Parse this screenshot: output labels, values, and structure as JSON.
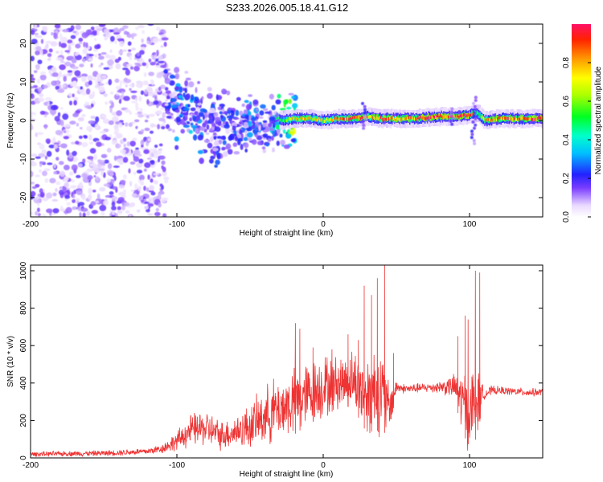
{
  "title": "S233.2026.005.18.41.G12",
  "chart_data": [
    {
      "type": "heatmap",
      "xlabel": "Height of straight line (km)",
      "ylabel": "Frequency (Hz)",
      "xlim": [
        -200,
        150
      ],
      "ylim": [
        -25,
        25
      ],
      "x_ticks": [
        -200,
        -100,
        0,
        100
      ],
      "y_ticks": [
        -20,
        -10,
        0,
        10,
        20
      ],
      "colorbar": {
        "label": "Normalized spectral amplitude",
        "range": [
          0.0,
          1.0
        ],
        "ticks": [
          "0.0",
          "0.2",
          "0.4",
          "0.6",
          "0.8"
        ]
      },
      "ridge_profile": {
        "x": [
          -110,
          -100,
          -90,
          -80,
          -70,
          -60,
          -50,
          -40,
          -35,
          -30,
          -20,
          -10,
          0,
          10,
          20,
          30,
          40,
          50,
          60,
          70,
          80,
          90,
          100,
          105,
          110,
          120,
          130,
          140,
          150
        ],
        "center_hz": [
          9,
          3,
          1.5,
          -1,
          -2,
          -1.5,
          -0.5,
          -2,
          -1,
          0,
          0.5,
          0.5,
          0,
          0.5,
          0.5,
          1,
          0.5,
          0.5,
          0.5,
          0.8,
          1,
          1,
          1.5,
          2,
          0,
          0.5,
          0.5,
          0.5,
          0.5
        ],
        "peak_amplitude": [
          0.15,
          0.25,
          0.3,
          0.2,
          0.2,
          0.2,
          0.25,
          0.2,
          0.3,
          0.45,
          0.7,
          0.75,
          0.65,
          0.8,
          0.85,
          0.8,
          0.9,
          0.85,
          0.85,
          0.95,
          0.9,
          0.9,
          0.9,
          0.5,
          0.75,
          0.85,
          0.9,
          0.9,
          0.9
        ]
      }
    },
    {
      "type": "line",
      "xlabel": "Height of straight line (km)",
      "ylabel": "SNR (10 * v/v)",
      "xlim": [
        -200,
        150
      ],
      "ylim": [
        0,
        1030
      ],
      "x_ticks": [
        -200,
        -100,
        0,
        100
      ],
      "y_ticks": [
        0,
        200,
        400,
        600,
        800,
        1000
      ],
      "series": [
        {
          "name": "SNR",
          "color": "#ee3333",
          "envelope_x": [
            -200,
            -150,
            -120,
            -110,
            -100,
            -90,
            -80,
            -70,
            -60,
            -50,
            -40,
            -35,
            -30,
            -20,
            -10,
            0,
            10,
            20,
            30,
            35,
            40,
            45,
            50,
            55,
            60,
            70,
            80,
            90,
            95,
            100,
            105,
            110,
            115,
            120,
            130,
            140,
            150
          ],
          "envelope_mean": [
            20,
            25,
            35,
            50,
            90,
            150,
            160,
            120,
            140,
            170,
            220,
            250,
            260,
            300,
            340,
            380,
            400,
            420,
            330,
            370,
            350,
            260,
            380,
            370,
            370,
            375,
            380,
            380,
            300,
            260,
            290,
            340,
            360,
            360,
            355,
            350,
            350
          ],
          "envelope_spread": [
            15,
            18,
            22,
            30,
            60,
            100,
            110,
            90,
            100,
            140,
            170,
            200,
            180,
            220,
            200,
            200,
            170,
            180,
            250,
            280,
            260,
            170,
            40,
            30,
            30,
            30,
            40,
            80,
            200,
            250,
            230,
            30,
            30,
            25,
            25,
            25,
            25
          ],
          "spikes": [
            {
              "x": -19,
              "y": 720
            },
            {
              "x": -16,
              "y": 690
            },
            {
              "x": -7,
              "y": 590
            },
            {
              "x": 6,
              "y": 580
            },
            {
              "x": 17,
              "y": 660
            },
            {
              "x": 24,
              "y": 630
            },
            {
              "x": 28,
              "y": 920
            },
            {
              "x": 33,
              "y": 870
            },
            {
              "x": 37,
              "y": 960
            },
            {
              "x": 42,
              "y": 1030
            },
            {
              "x": 48,
              "y": 560
            },
            {
              "x": 92,
              "y": 650
            },
            {
              "x": 97,
              "y": 760
            },
            {
              "x": 99,
              "y": 740
            },
            {
              "x": 104,
              "y": 1000
            },
            {
              "x": 107,
              "y": 990
            }
          ]
        }
      ]
    }
  ]
}
